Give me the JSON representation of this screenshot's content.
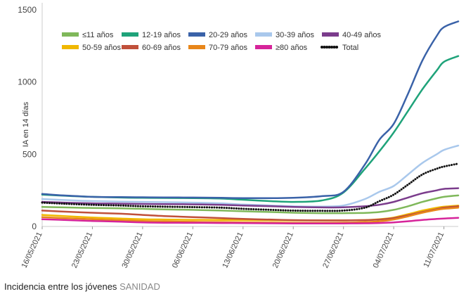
{
  "caption": {
    "text": "Incidencia entre los jóvenes",
    "source": "SANIDAD"
  },
  "chart_data": {
    "type": "line",
    "title": "",
    "xlabel": "",
    "ylabel": "IA en 14 días",
    "ylim": [
      0,
      1500
    ],
    "yticks": [
      0,
      500,
      1000,
      1500
    ],
    "grid": false,
    "legend_position": "top-left",
    "x": [
      "16/05/2021",
      "19/05/2021",
      "23/05/2021",
      "27/05/2021",
      "30/05/2021",
      "02/06/2021",
      "06/06/2021",
      "10/06/2021",
      "13/06/2021",
      "17/06/2021",
      "20/06/2021",
      "24/06/2021",
      "27/06/2021",
      "30/06/2021",
      "02/07/2021",
      "04/07/2021",
      "06/07/2021",
      "08/07/2021",
      "10/07/2021",
      "11/07/2021",
      "13/07/2021"
    ],
    "xticks": [
      "16/05/2021",
      "23/05/2021",
      "30/05/2021",
      "06/06/2021",
      "13/06/2021",
      "20/06/2021",
      "27/06/2021",
      "04/07/2021",
      "11/07/2021"
    ],
    "series": [
      {
        "name": "≤11 años",
        "color": "#7fb85a",
        "style": "solid",
        "values": [
          135,
          132,
          128,
          125,
          122,
          118,
          115,
          110,
          105,
          100,
          95,
          92,
          92,
          94,
          100,
          115,
          140,
          170,
          195,
          205,
          215
        ]
      },
      {
        "name": "12-19 años",
        "color": "#1fa37a",
        "style": "solid",
        "values": [
          220,
          213,
          205,
          200,
          198,
          197,
          196,
          193,
          185,
          175,
          170,
          180,
          235,
          400,
          520,
          650,
          800,
          950,
          1080,
          1140,
          1180
        ]
      },
      {
        "name": "20-29 años",
        "color": "#3a62a8",
        "style": "solid",
        "values": [
          225,
          215,
          205,
          203,
          202,
          201,
          200,
          198,
          196,
          196,
          198,
          210,
          240,
          430,
          600,
          710,
          920,
          1150,
          1320,
          1380,
          1420
        ]
      },
      {
        "name": "30-39 años",
        "color": "#a9c8ec",
        "style": "solid",
        "values": [
          190,
          183,
          176,
          172,
          170,
          168,
          165,
          160,
          152,
          145,
          140,
          138,
          145,
          190,
          240,
          280,
          360,
          440,
          500,
          530,
          560
        ]
      },
      {
        "name": "40-49 años",
        "color": "#7b3c8c",
        "style": "solid",
        "values": [
          170,
          165,
          160,
          158,
          156,
          155,
          153,
          150,
          145,
          140,
          135,
          132,
          133,
          140,
          150,
          170,
          200,
          230,
          250,
          260,
          265
        ]
      },
      {
        "name": "50-59 años",
        "color": "#f0b800",
        "style": "solid",
        "values": [
          80,
          72,
          62,
          55,
          50,
          48,
          46,
          45,
          44,
          43,
          42,
          42,
          42,
          44,
          50,
          62,
          85,
          110,
          130,
          137,
          145
        ]
      },
      {
        "name": "60-69 años",
        "color": "#c0503a",
        "style": "solid",
        "values": [
          110,
          103,
          95,
          88,
          80,
          72,
          65,
          58,
          52,
          47,
          44,
          42,
          42,
          44,
          48,
          58,
          78,
          100,
          120,
          130,
          140
        ]
      },
      {
        "name": "70-79 años",
        "color": "#e8861a",
        "style": "solid",
        "values": [
          65,
          58,
          50,
          43,
          38,
          35,
          32,
          30,
          28,
          27,
          26,
          26,
          27,
          30,
          36,
          48,
          70,
          95,
          115,
          122,
          130
        ]
      },
      {
        "name": "≥80 años",
        "color": "#d6249a",
        "style": "solid",
        "values": [
          50,
          45,
          38,
          33,
          28,
          26,
          25,
          24,
          23,
          22,
          21,
          21,
          21,
          22,
          24,
          28,
          36,
          45,
          52,
          55,
          60
        ]
      },
      {
        "name": "Total",
        "color": "#111111",
        "style": "dotted",
        "values": [
          165,
          158,
          150,
          145,
          140,
          137,
          134,
          130,
          122,
          115,
          110,
          108,
          110,
          130,
          175,
          220,
          290,
          360,
          400,
          415,
          435
        ]
      }
    ]
  }
}
